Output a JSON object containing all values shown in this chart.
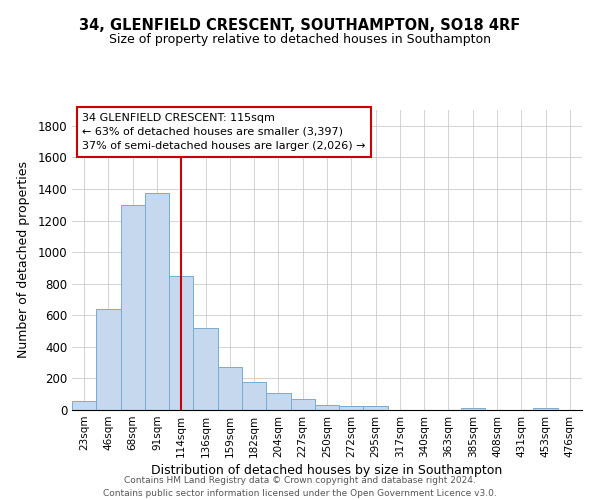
{
  "title": "34, GLENFIELD CRESCENT, SOUTHAMPTON, SO18 4RF",
  "subtitle": "Size of property relative to detached houses in Southampton",
  "xlabel": "Distribution of detached houses by size in Southampton",
  "ylabel": "Number of detached properties",
  "categories": [
    "23sqm",
    "46sqm",
    "68sqm",
    "91sqm",
    "114sqm",
    "136sqm",
    "159sqm",
    "182sqm",
    "204sqm",
    "227sqm",
    "250sqm",
    "272sqm",
    "295sqm",
    "317sqm",
    "340sqm",
    "363sqm",
    "385sqm",
    "408sqm",
    "431sqm",
    "453sqm",
    "476sqm"
  ],
  "values": [
    55,
    640,
    1300,
    1375,
    850,
    520,
    275,
    175,
    105,
    70,
    30,
    28,
    25,
    0,
    0,
    0,
    15,
    0,
    0,
    10,
    0
  ],
  "bar_color": "#c5d8ee",
  "bar_edge_color": "#7aaad0",
  "vline_x_index": 4,
  "vline_color": "#cc0000",
  "annotation_text": "34 GLENFIELD CRESCENT: 115sqm\n← 63% of detached houses are smaller (3,397)\n37% of semi-detached houses are larger (2,026) →",
  "ylim": [
    0,
    1900
  ],
  "yticks": [
    0,
    200,
    400,
    600,
    800,
    1000,
    1200,
    1400,
    1600,
    1800
  ],
  "footer_line1": "Contains HM Land Registry data © Crown copyright and database right 2024.",
  "footer_line2": "Contains public sector information licensed under the Open Government Licence v3.0.",
  "background_color": "#ffffff",
  "grid_color": "#cccccc"
}
